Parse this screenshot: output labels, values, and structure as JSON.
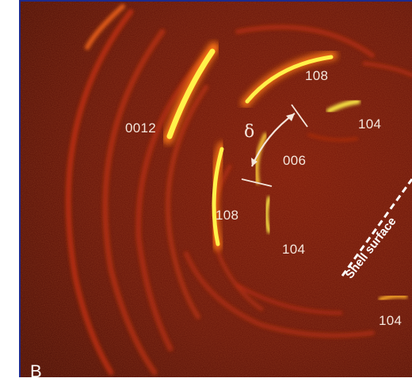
{
  "figure": {
    "background_color": "#5a0f06",
    "border_color": "#1e2a8c",
    "ring_color": "#c8300c",
    "bright_color": "#fff24a",
    "label_color": "#f4e6dc"
  },
  "labels": {
    "reflection_0012": "0012",
    "reflection_108_top": "108",
    "reflection_104_top": "104",
    "reflection_006": "006",
    "reflection_108_mid": "108",
    "reflection_104_mid": "104",
    "reflection_104_bottom": "104",
    "delta_symbol": "δ",
    "shell_surface": "Shell surface",
    "panel_letter": "B"
  }
}
